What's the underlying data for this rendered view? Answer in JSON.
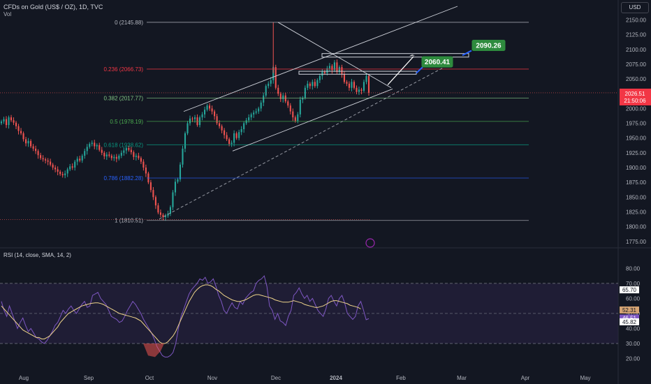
{
  "header": {
    "symbol": "CFDs on Gold (US$ / OZ), 1D, TVC",
    "volume_label": "Vol",
    "currency": "USD",
    "rsi_label": "RSI (14, close, SMA, 14, 2)"
  },
  "colors": {
    "background": "#131722",
    "up": "#26a69a",
    "down": "#ef5350",
    "rsi_line": "#7e57c2",
    "rsi_sma": "#f0d58b",
    "rsi_band": "#2a2346",
    "target_box": "#2e8b3e",
    "fib_0": "#b2b5be",
    "fib_236": "#f23645",
    "fib_382": "#81c784",
    "fib_5": "#4caf50",
    "fib_618": "#089981",
    "fib_786": "#2962ff",
    "fib_1": "#b2b5be"
  },
  "chart_data": [
    {
      "type": "candlestick",
      "y_axis_ticks": [
        2150,
        2125,
        2100,
        2075,
        2050,
        2025,
        2000,
        1975,
        1950,
        1925,
        1900,
        1875,
        1850,
        1825,
        1800,
        1775
      ],
      "ylim": [
        1770,
        2160
      ],
      "x_axis_labels": [
        "Aug",
        "Sep",
        "Oct",
        "Nov",
        "Dec",
        "2024",
        "Feb",
        "Mar",
        "Apr",
        "May"
      ],
      "last_price": "2026.51",
      "countdown": "21:50:06",
      "fib_levels": [
        {
          "ratio": "0",
          "price": 2145.88,
          "label": "0 (2145.88)",
          "color_key": "fib_0"
        },
        {
          "ratio": "0.236",
          "price": 2066.73,
          "label": "0.236 (2066.73)",
          "color_key": "fib_236"
        },
        {
          "ratio": "0.382",
          "price": 2017.77,
          "label": "0.382 (2017.77)",
          "color_key": "fib_382"
        },
        {
          "ratio": "0.5",
          "price": 1978.19,
          "label": "0.5 (1978.19)",
          "color_key": "fib_5"
        },
        {
          "ratio": "0.618",
          "price": 1938.62,
          "label": "0.618 (1938.62)",
          "color_key": "fib_618"
        },
        {
          "ratio": "0.786",
          "price": 1882.28,
          "label": "0.786 (1882.28)",
          "color_key": "fib_786"
        },
        {
          "ratio": "1",
          "price": 1810.51,
          "label": "1 (1810.51)",
          "color_key": "fib_1"
        }
      ],
      "targets": [
        {
          "value": "2060.41",
          "price": 2060.41
        },
        {
          "value": "2090.26",
          "price": 2090.26
        }
      ],
      "candles_close": [
        1978,
        1982,
        1972,
        1985,
        1980,
        1976,
        1970,
        1962,
        1958,
        1948,
        1941,
        1945,
        1936,
        1932,
        1928,
        1921,
        1916,
        1914,
        1912,
        1910,
        1905,
        1900,
        1897,
        1893,
        1889,
        1887,
        1890,
        1897,
        1902,
        1900,
        1910,
        1915,
        1912,
        1920,
        1928,
        1935,
        1940,
        1942,
        1936,
        1938,
        1930,
        1925,
        1919,
        1922,
        1920,
        1916,
        1918,
        1915,
        1920,
        1925,
        1929,
        1933,
        1930,
        1926,
        1918,
        1920,
        1916,
        1910,
        1900,
        1890,
        1875,
        1862,
        1850,
        1836,
        1824,
        1820,
        1816,
        1818,
        1822,
        1833,
        1858,
        1876,
        1880,
        1905,
        1932,
        1958,
        1975,
        1983,
        1982,
        1985,
        1972,
        1985,
        1990,
        1998,
        2005,
        2000,
        1995,
        1987,
        1975,
        1970,
        1963,
        1955,
        1948,
        1940,
        1942,
        1958,
        1950,
        1960,
        1965,
        1975,
        1980,
        1985,
        1990,
        1993,
        1995,
        2000,
        2010,
        2022,
        2038,
        2042,
        2048,
        2070,
        2035,
        2025,
        2016,
        2022,
        2012,
        2005,
        1995,
        1985,
        1979,
        1990,
        2015,
        2018,
        2035,
        2042,
        2038,
        2045,
        2038,
        2048,
        2055,
        2062,
        2060,
        2068,
        2072,
        2065,
        2078,
        2062,
        2070,
        2058,
        2045,
        2042,
        2035,
        2045,
        2035,
        2028,
        2032,
        2030,
        2045,
        2055,
        2026.51
      ],
      "annotation": "Dec"
    },
    {
      "type": "line",
      "title": "RSI (14, close, SMA, 14, 2)",
      "y_axis_ticks": [
        80,
        70,
        60,
        50,
        40,
        30,
        20
      ],
      "ylim": [
        17,
        82
      ],
      "bands": [
        70,
        50,
        30
      ],
      "series": [
        {
          "name": "RSI",
          "values": [
            58,
            52,
            48,
            55,
            50,
            45,
            40,
            44,
            47,
            42,
            38,
            40,
            37,
            34,
            33,
            31,
            30,
            32,
            35,
            38,
            42,
            44,
            48,
            52,
            50,
            53,
            55,
            52,
            50,
            53,
            56,
            58,
            54,
            55,
            62,
            63,
            64,
            60,
            58,
            56,
            52,
            48,
            47,
            46,
            44,
            45,
            48,
            52,
            55,
            58,
            56,
            53,
            50,
            46,
            43,
            40,
            37,
            33,
            28,
            25,
            22,
            21,
            21,
            22,
            24,
            30,
            40,
            48,
            53,
            58,
            63,
            66,
            68,
            70,
            73,
            72,
            74,
            70,
            71,
            73,
            68,
            62,
            58,
            52,
            50,
            54,
            57,
            54,
            53,
            58,
            56,
            60,
            62,
            64,
            65,
            70,
            72,
            73,
            75,
            68,
            55,
            52,
            46,
            50,
            45,
            44,
            42,
            48,
            52,
            62,
            64,
            67,
            63,
            60,
            62,
            58,
            60,
            56,
            52,
            50,
            48,
            53,
            60,
            62,
            58,
            55,
            60,
            62,
            57,
            50,
            48,
            46,
            48,
            55,
            58,
            52.31,
            45.82,
            46.51
          ]
        },
        {
          "name": "SMA",
          "values": [
            55,
            53,
            51,
            49,
            47,
            45,
            43,
            41,
            39,
            38,
            37,
            36,
            35,
            34,
            34,
            33,
            33,
            34,
            35,
            37,
            39,
            41,
            44,
            46,
            48,
            50,
            51,
            52,
            53,
            54,
            55,
            55.5,
            56,
            56.5,
            56.8,
            57,
            57,
            56.6,
            56,
            55,
            54,
            53,
            52,
            51,
            50,
            49.5,
            49,
            48.5,
            48,
            47.5,
            47,
            46,
            45,
            43,
            41,
            39,
            37,
            35,
            33,
            31,
            30,
            30,
            31,
            33,
            35,
            38,
            42,
            46,
            50,
            54,
            58,
            61,
            64,
            66,
            67.5,
            68.5,
            69,
            69,
            68.5,
            67.5,
            66,
            65,
            63.5,
            62,
            61,
            60,
            59,
            58.5,
            58,
            58,
            58.5,
            59,
            60,
            61,
            62,
            62.5,
            62.5,
            62,
            61.5,
            61,
            60.5,
            60,
            59,
            58.5,
            58,
            57.5,
            57.5,
            57.5,
            58,
            58.5,
            58,
            57.5,
            57,
            56,
            55.5,
            55,
            54.5,
            54,
            54,
            54.5,
            55,
            56,
            57,
            58,
            58.5,
            58.5,
            58,
            57.5,
            57,
            56.5,
            55.5,
            55,
            54.5,
            54,
            53
          ]
        },
        {
          "name": "RSI-SMA",
          "values": []
        }
      ],
      "value_labels": [
        "65.70",
        "52.31",
        "46.51",
        "45.82"
      ]
    }
  ]
}
